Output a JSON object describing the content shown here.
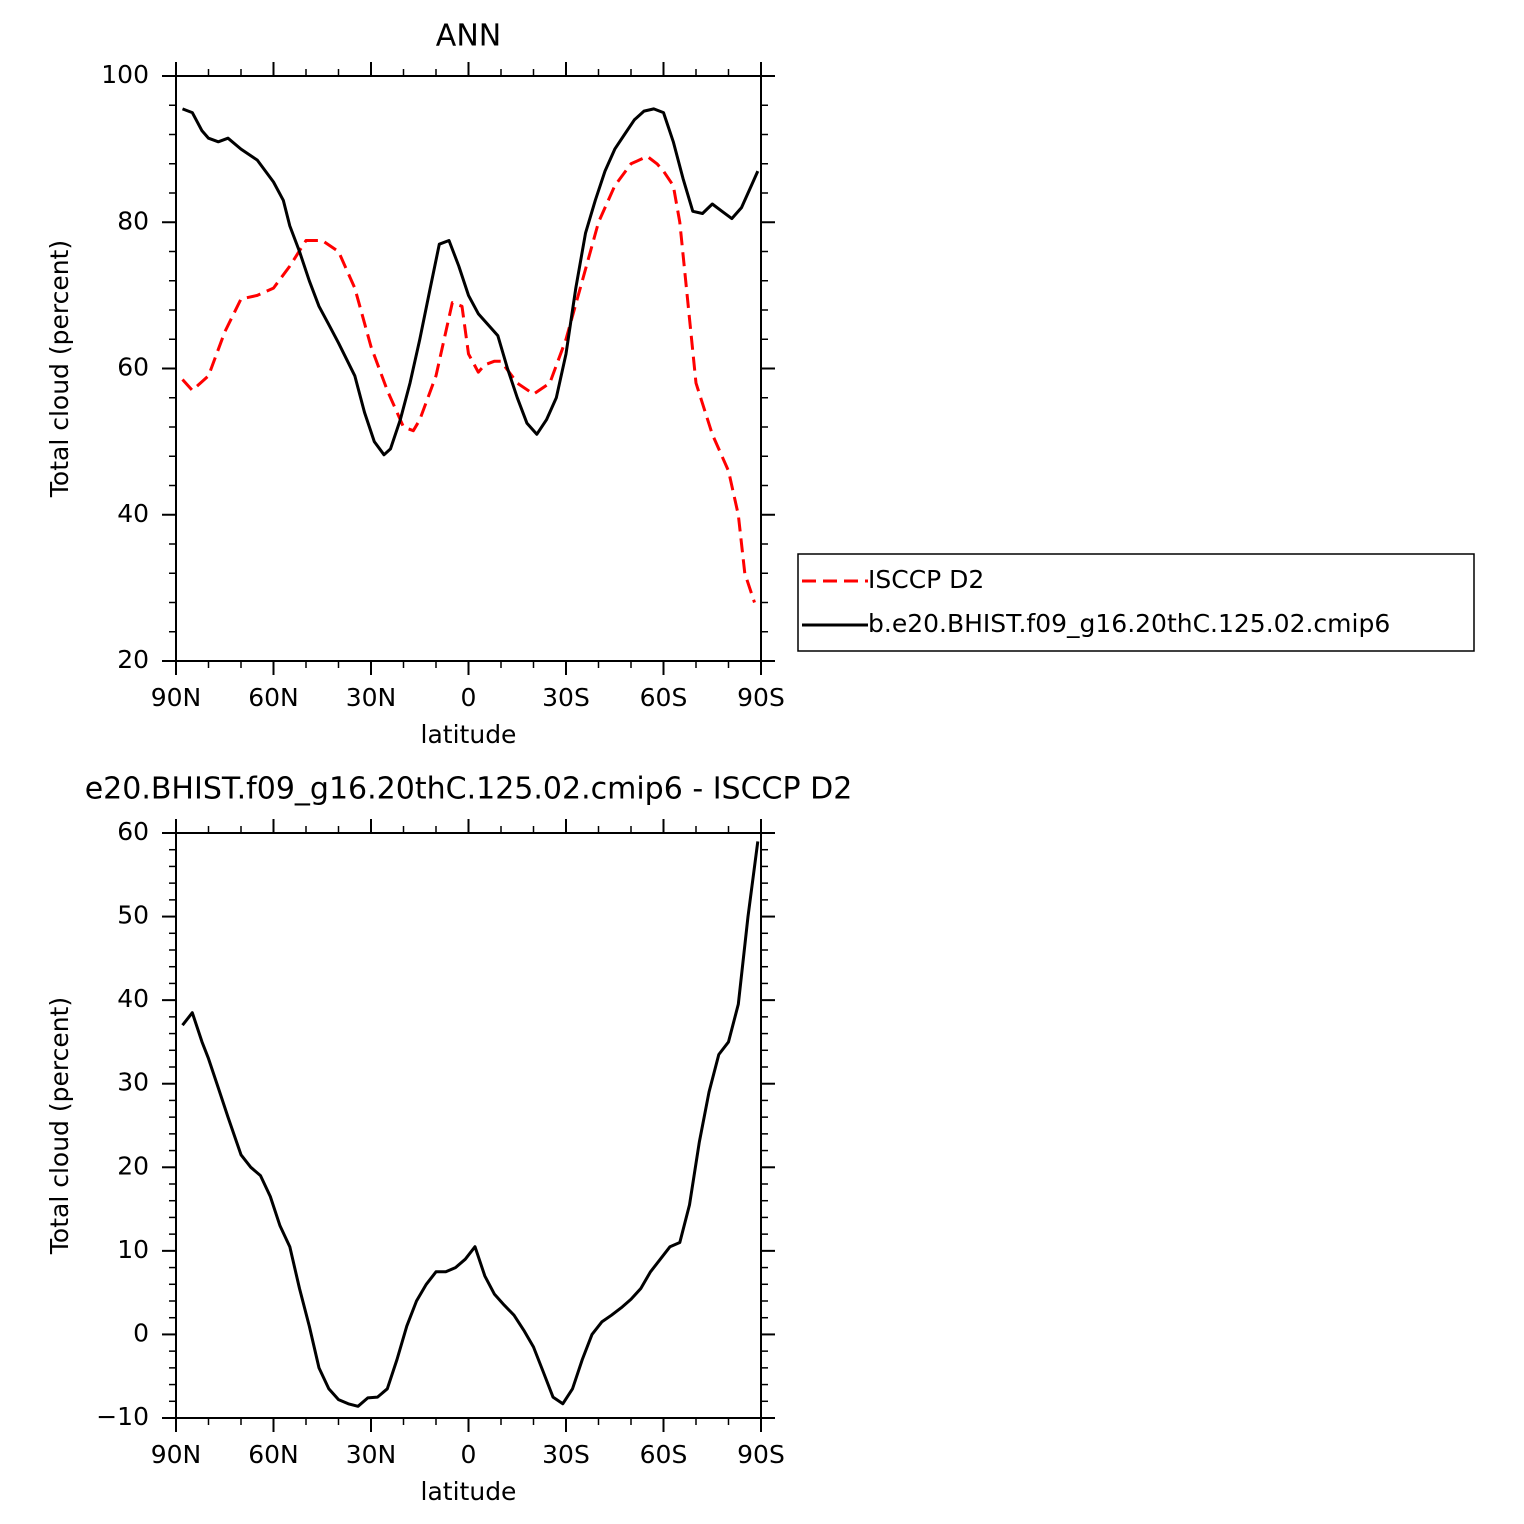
{
  "chart_data": [
    {
      "type": "line",
      "title": "ANN",
      "xlabel": "latitude",
      "ylabel": "Total cloud (percent)",
      "xlim": [
        90,
        -90
      ],
      "ylim": [
        20,
        100
      ],
      "x_ticks": [
        90,
        60,
        30,
        0,
        -30,
        -60,
        -90
      ],
      "x_tick_labels": [
        "90N",
        "60N",
        "30N",
        "0",
        "30S",
        "60S",
        "90S"
      ],
      "y_ticks": [
        20,
        40,
        60,
        80,
        100
      ],
      "y_tick_labels": [
        "20",
        "40",
        "60",
        "80",
        "100"
      ],
      "legend_position": "right",
      "series": [
        {
          "name": "ISCCP D2",
          "color": "#ff0000",
          "dash": "dashed",
          "x": [
            88,
            85,
            80,
            75,
            70,
            65,
            60,
            55,
            50,
            45,
            40,
            35,
            30,
            25,
            20,
            17,
            15,
            10,
            5,
            2,
            0,
            -3,
            -5,
            -8,
            -10,
            -15,
            -20,
            -25,
            -30,
            -35,
            -40,
            -45,
            -50,
            -55,
            -58,
            -60,
            -63,
            -65,
            -70,
            -75,
            -80,
            -83,
            -85,
            -88
          ],
          "y": [
            58.5,
            57,
            59,
            65,
            69.5,
            70,
            71,
            74,
            77.5,
            77.5,
            76,
            71,
            63,
            57,
            52,
            51.5,
            53,
            59,
            69,
            68.5,
            62,
            59.5,
            60.5,
            61,
            61,
            58,
            56.5,
            58,
            64,
            72,
            80,
            85,
            88,
            89,
            88,
            87,
            85,
            80,
            58,
            51,
            46,
            40,
            32,
            28
          ]
        },
        {
          "name": "b.e20.BHIST.f09_g16.20thC.125.02.cmip6",
          "color": "#000000",
          "dash": "solid",
          "x": [
            88,
            85,
            82,
            80,
            77,
            74,
            70,
            65,
            60,
            57,
            55,
            52,
            49,
            46,
            43,
            40,
            35,
            32,
            29,
            26,
            24,
            21,
            18,
            15,
            12,
            9,
            6,
            3,
            0,
            -3,
            -6,
            -9,
            -12,
            -15,
            -18,
            -21,
            -24,
            -27,
            -30,
            -33,
            -36,
            -39,
            -42,
            -45,
            -48,
            -51,
            -54,
            -57,
            -60,
            -63,
            -66,
            -69,
            -72,
            -75,
            -78,
            -81,
            -84,
            -87,
            -89
          ],
          "y": [
            95.5,
            95,
            92.5,
            91.5,
            91,
            91.5,
            90,
            88.5,
            85.5,
            83,
            79.5,
            76,
            72,
            68.5,
            66,
            63.5,
            59,
            54,
            50,
            48.2,
            49,
            53,
            58,
            64,
            70.5,
            77,
            77.5,
            74,
            70,
            67.5,
            66,
            64.5,
            60,
            56,
            52.5,
            51,
            53,
            56,
            62,
            71,
            78.5,
            83,
            87,
            90,
            92,
            94,
            95.2,
            95.5,
            95,
            91,
            86,
            81.5,
            81.2,
            82.5,
            81.5,
            80.5,
            82,
            85,
            87
          ]
        }
      ]
    },
    {
      "type": "line",
      "title": "e20.BHIST.f09_g16.20thC.125.02.cmip6 - ISCCP D2",
      "xlabel": "latitude",
      "ylabel": "Total cloud (percent)",
      "xlim": [
        90,
        -90
      ],
      "ylim": [
        -10,
        60
      ],
      "x_ticks": [
        90,
        60,
        30,
        0,
        -30,
        -60,
        -90
      ],
      "x_tick_labels": [
        "90N",
        "60N",
        "30N",
        "0",
        "30S",
        "60S",
        "90S"
      ],
      "y_ticks": [
        -10,
        0,
        10,
        20,
        30,
        40,
        50,
        60
      ],
      "y_tick_labels": [
        "−10",
        "0",
        "10",
        "20",
        "30",
        "40",
        "50",
        "60"
      ],
      "series": [
        {
          "color": "#000000",
          "dash": "solid",
          "x": [
            88,
            85,
            82,
            80,
            77,
            74,
            70,
            67,
            64,
            61,
            58,
            55,
            52,
            49,
            46,
            43,
            40,
            37,
            34,
            31,
            28,
            25,
            22,
            19,
            16,
            13,
            10,
            7,
            4,
            1,
            -2,
            -5,
            -8,
            -11,
            -14,
            -17,
            -20,
            -23,
            -26,
            -29,
            -32,
            -35,
            -38,
            -41,
            -44,
            -47,
            -50,
            -53,
            -56,
            -59,
            -62,
            -65,
            -68,
            -71,
            -74,
            -77,
            -80,
            -83,
            -86,
            -89
          ],
          "y": [
            37,
            38.5,
            35,
            33,
            29.5,
            26,
            21.5,
            20,
            19,
            16.5,
            13,
            10.5,
            5.5,
            1,
            -4,
            -6.5,
            -7.8,
            -8.3,
            -8.6,
            -7.6,
            -7.5,
            -6.5,
            -3,
            1,
            4,
            6,
            7.5,
            7.5,
            8,
            9,
            10.5,
            7,
            4.8,
            3.5,
            2.3,
            0.5,
            -1.5,
            -4.5,
            -7.5,
            -8.3,
            -6.5,
            -3,
            0,
            1.5,
            2.3,
            3.2,
            4.2,
            5.5,
            7.5,
            9,
            10.5,
            11,
            15.5,
            23,
            29,
            33.5,
            35,
            39.5,
            50,
            59
          ]
        }
      ]
    }
  ]
}
